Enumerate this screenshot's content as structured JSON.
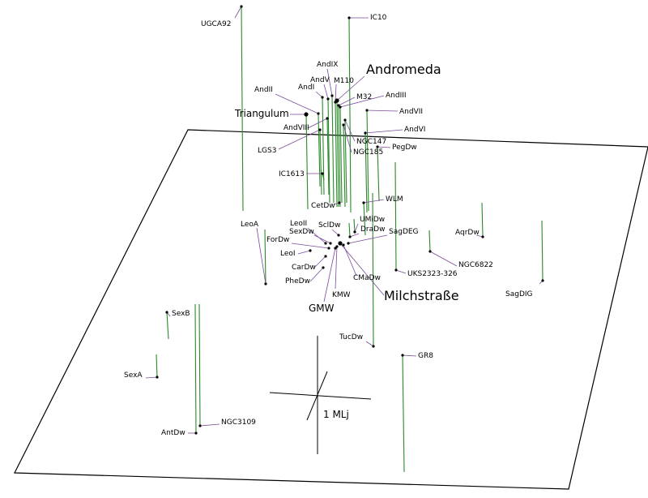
{
  "scale_label": "1 MLj",
  "galaxies": [
    {
      "name": "UGCA92",
      "size": "lbl"
    },
    {
      "name": "IC10",
      "size": "lbl"
    },
    {
      "name": "AndIX",
      "size": "lbl"
    },
    {
      "name": "Andromeda",
      "size": "big"
    },
    {
      "name": "AndV",
      "size": "lbl"
    },
    {
      "name": "M110",
      "size": "lbl"
    },
    {
      "name": "AndI",
      "size": "lbl"
    },
    {
      "name": "AndII",
      "size": "lbl"
    },
    {
      "name": "M32",
      "size": "lbl"
    },
    {
      "name": "AndIII",
      "size": "lbl"
    },
    {
      "name": "Triangulum",
      "size": "mid"
    },
    {
      "name": "AndVII",
      "size": "lbl"
    },
    {
      "name": "AndVIII",
      "size": "lbl"
    },
    {
      "name": "AndVI",
      "size": "lbl"
    },
    {
      "name": "NGC147",
      "size": "lbl"
    },
    {
      "name": "LGS3",
      "size": "lbl"
    },
    {
      "name": "NGC185",
      "size": "lbl"
    },
    {
      "name": "PegDw",
      "size": "lbl"
    },
    {
      "name": "IC1613",
      "size": "lbl"
    },
    {
      "name": "CetDw",
      "size": "lbl"
    },
    {
      "name": "WLM",
      "size": "lbl"
    },
    {
      "name": "LeoA",
      "size": "lbl"
    },
    {
      "name": "LeoII",
      "size": "lbl"
    },
    {
      "name": "SclDw",
      "size": "lbl"
    },
    {
      "name": "UMiDw",
      "size": "lbl"
    },
    {
      "name": "SexDw",
      "size": "lbl"
    },
    {
      "name": "DraDw",
      "size": "lbl"
    },
    {
      "name": "SagDEG",
      "size": "lbl"
    },
    {
      "name": "AqrDw",
      "size": "lbl"
    },
    {
      "name": "ForDw",
      "size": "lbl"
    },
    {
      "name": "LeoI",
      "size": "lbl"
    },
    {
      "name": "NGC6822",
      "size": "lbl"
    },
    {
      "name": "CarDw",
      "size": "lbl"
    },
    {
      "name": "UKS2323-326",
      "size": "lbl"
    },
    {
      "name": "PheDw",
      "size": "lbl"
    },
    {
      "name": "CMaDw",
      "size": "lbl"
    },
    {
      "name": "SagDIG",
      "size": "lbl"
    },
    {
      "name": "KMW",
      "size": "lbl"
    },
    {
      "name": "Milchstraße",
      "size": "big"
    },
    {
      "name": "GMW",
      "size": "mid"
    },
    {
      "name": "SexB",
      "size": "lbl"
    },
    {
      "name": "TucDw",
      "size": "lbl"
    },
    {
      "name": "GR8",
      "size": "lbl"
    },
    {
      "name": "SexA",
      "size": "lbl"
    },
    {
      "name": "NGC3109",
      "size": "lbl"
    },
    {
      "name": "AntDw",
      "size": "lbl"
    }
  ]
}
